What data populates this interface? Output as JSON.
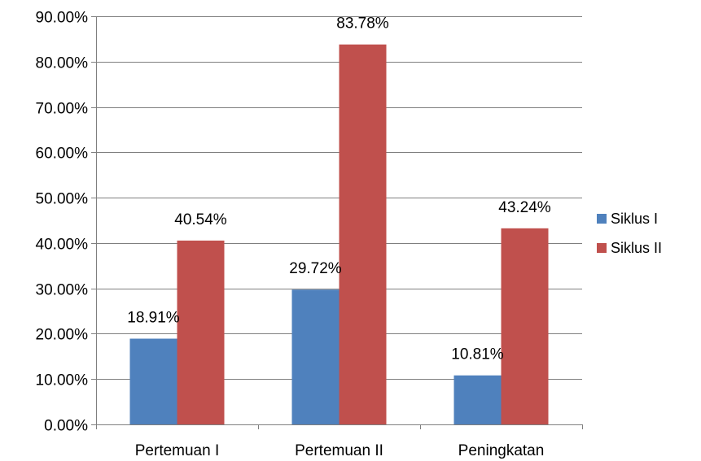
{
  "chart_data": {
    "type": "bar",
    "categories": [
      "Pertemuan I",
      "Pertemuan II",
      "Peningkatan"
    ],
    "series": [
      {
        "name": "Siklus I",
        "values": [
          18.91,
          29.72,
          10.81
        ],
        "labels": [
          "18.91%",
          "29.72%",
          "10.81%"
        ],
        "color": "#4f81bd"
      },
      {
        "name": "Siklus II",
        "values": [
          40.54,
          83.78,
          43.24
        ],
        "labels": [
          "40.54%",
          "83.78%",
          "43.24%"
        ],
        "color": "#c0504d"
      }
    ],
    "ylim": [
      0,
      90
    ],
    "yticks": [
      0,
      10,
      20,
      30,
      40,
      50,
      60,
      70,
      80,
      90
    ],
    "ytick_labels": [
      "0.00%",
      "10.00%",
      "20.00%",
      "30.00%",
      "40.00%",
      "50.00%",
      "60.00%",
      "70.00%",
      "80.00%",
      "90.00%"
    ],
    "grid": true,
    "legend_position": "right",
    "title": "",
    "xlabel": "",
    "ylabel": ""
  }
}
